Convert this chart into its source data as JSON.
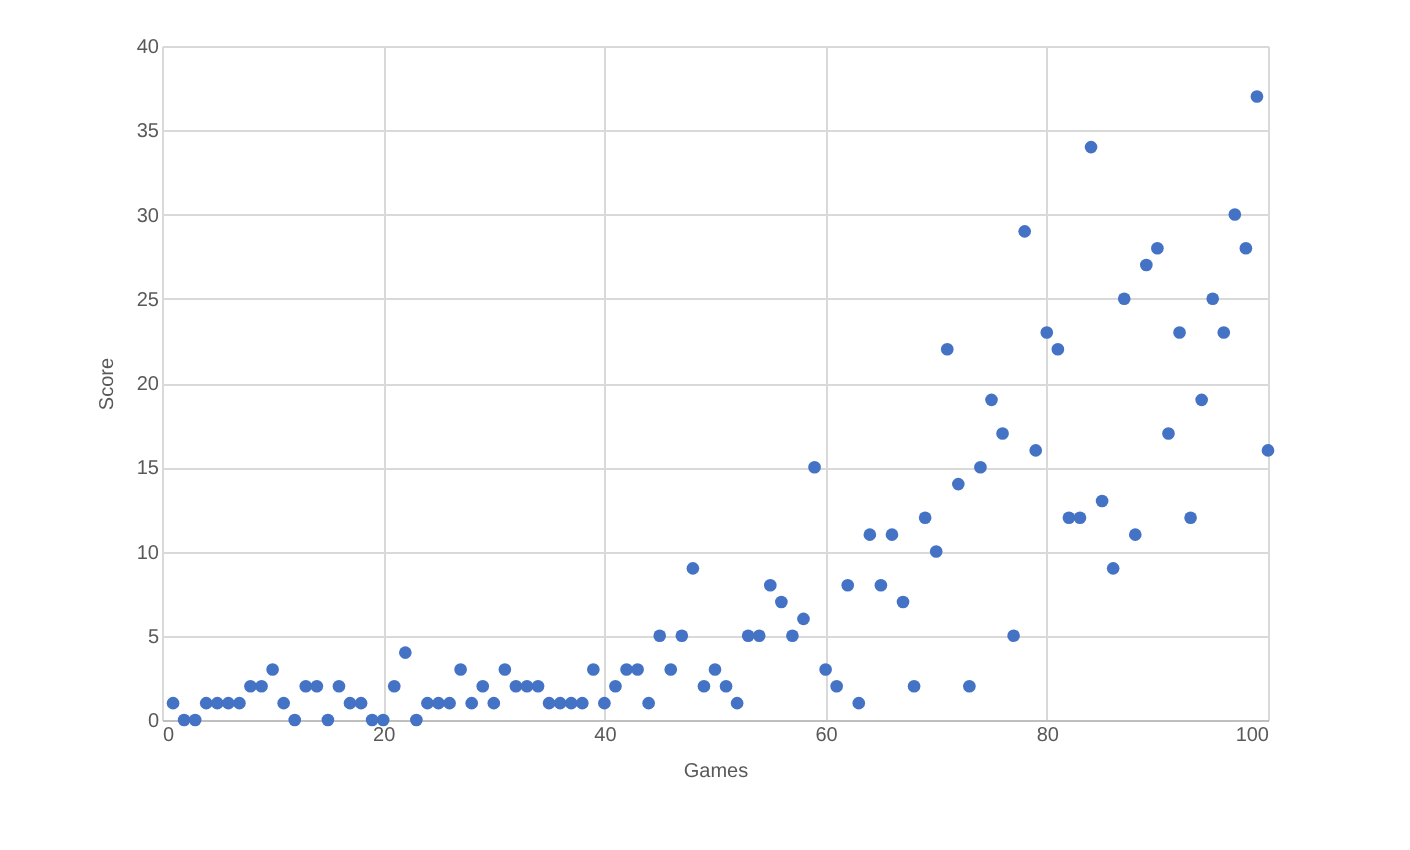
{
  "chart_data": {
    "type": "scatter",
    "xlabel": "Games",
    "ylabel": "Score",
    "x": [
      1,
      2,
      3,
      4,
      5,
      6,
      7,
      8,
      9,
      10,
      11,
      12,
      13,
      14,
      15,
      16,
      17,
      18,
      19,
      20,
      21,
      22,
      23,
      24,
      25,
      26,
      27,
      28,
      29,
      30,
      31,
      32,
      33,
      34,
      35,
      36,
      37,
      38,
      39,
      40,
      41,
      42,
      43,
      44,
      45,
      46,
      47,
      48,
      49,
      50,
      51,
      52,
      53,
      54,
      55,
      56,
      57,
      58,
      59,
      60,
      61,
      62,
      63,
      64,
      65,
      66,
      67,
      68,
      69,
      70,
      71,
      72,
      73,
      74,
      75,
      76,
      77,
      78,
      79,
      80,
      81,
      82,
      83,
      84,
      85,
      86,
      87,
      88,
      89,
      90,
      91,
      92,
      93,
      94,
      95,
      96,
      97,
      98,
      99,
      100
    ],
    "series": [
      {
        "color": "#4472c4",
        "values": [
          1,
          0,
          0,
          1,
          1,
          1,
          1,
          2,
          2,
          3,
          1,
          0,
          2,
          2,
          0,
          2,
          1,
          1,
          0,
          0,
          2,
          4,
          0,
          1,
          1,
          1,
          3,
          1,
          2,
          1,
          3,
          2,
          2,
          2,
          1,
          1,
          1,
          1,
          3,
          1,
          2,
          3,
          3,
          1,
          5,
          3,
          5,
          9,
          2,
          3,
          2,
          1,
          5,
          5,
          8,
          7,
          5,
          6,
          15,
          3,
          2,
          8,
          1,
          11,
          8,
          11,
          7,
          2,
          12,
          10,
          22,
          14,
          2,
          15,
          19,
          17,
          5,
          29,
          16,
          23,
          22,
          12,
          12,
          34,
          13,
          9,
          25,
          11,
          27,
          28,
          17,
          23,
          12,
          19,
          25,
          23,
          30,
          28,
          37,
          16
        ]
      }
    ],
    "xlim": [
      0,
      100
    ],
    "xticks": [
      0,
      20,
      40,
      60,
      80,
      100
    ],
    "ylim": [
      0,
      40
    ],
    "yticks": [
      0,
      5,
      10,
      15,
      20,
      25,
      30,
      35,
      40
    ],
    "grid": true,
    "marker": "circle"
  }
}
